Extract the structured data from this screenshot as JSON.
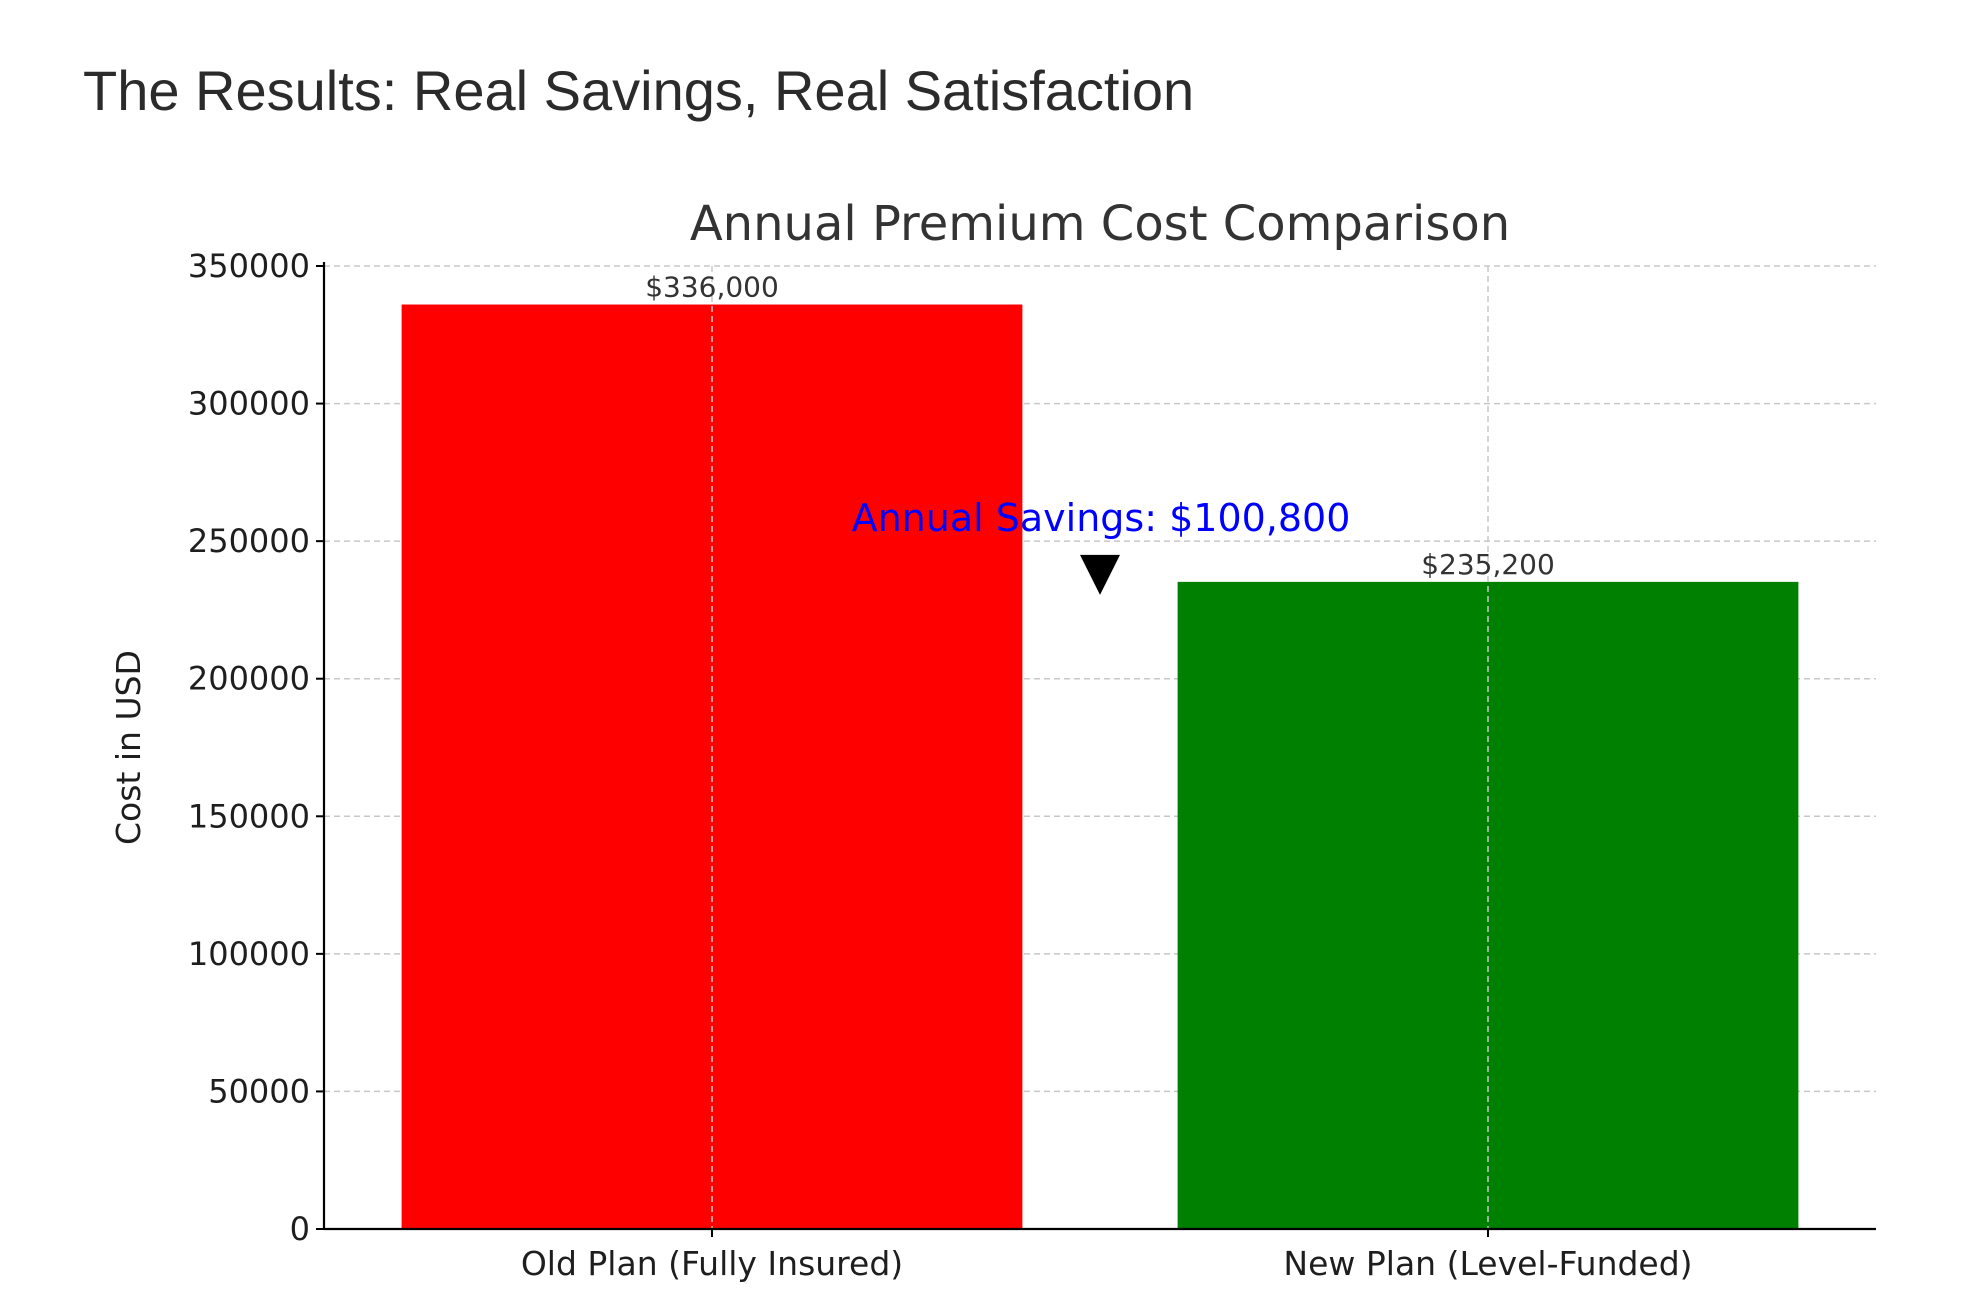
{
  "page": {
    "heading": "The Results: Real Savings, Real Satisfaction"
  },
  "chart_data": {
    "type": "bar",
    "title": "Annual Premium Cost Comparison",
    "xlabel": "",
    "ylabel": "Cost in USD",
    "categories": [
      "Old Plan (Fully Insured)",
      "New Plan (Level-Funded)"
    ],
    "values": [
      336000,
      235200
    ],
    "value_labels": [
      "$336,000",
      "$235,200"
    ],
    "bar_colors": [
      "#ff0000",
      "#008000"
    ],
    "ylim": [
      0,
      350000
    ],
    "yticks": [
      0,
      50000,
      100000,
      150000,
      200000,
      250000,
      300000,
      350000
    ],
    "ytick_labels": [
      "0",
      "50000",
      "100000",
      "150000",
      "200000",
      "250000",
      "300000",
      "350000"
    ],
    "grid": true,
    "annotation": {
      "text": "Annual Savings: $100,800",
      "color": "#0000ff",
      "arrow_color": "#000000",
      "arrow_direction": "down"
    }
  }
}
